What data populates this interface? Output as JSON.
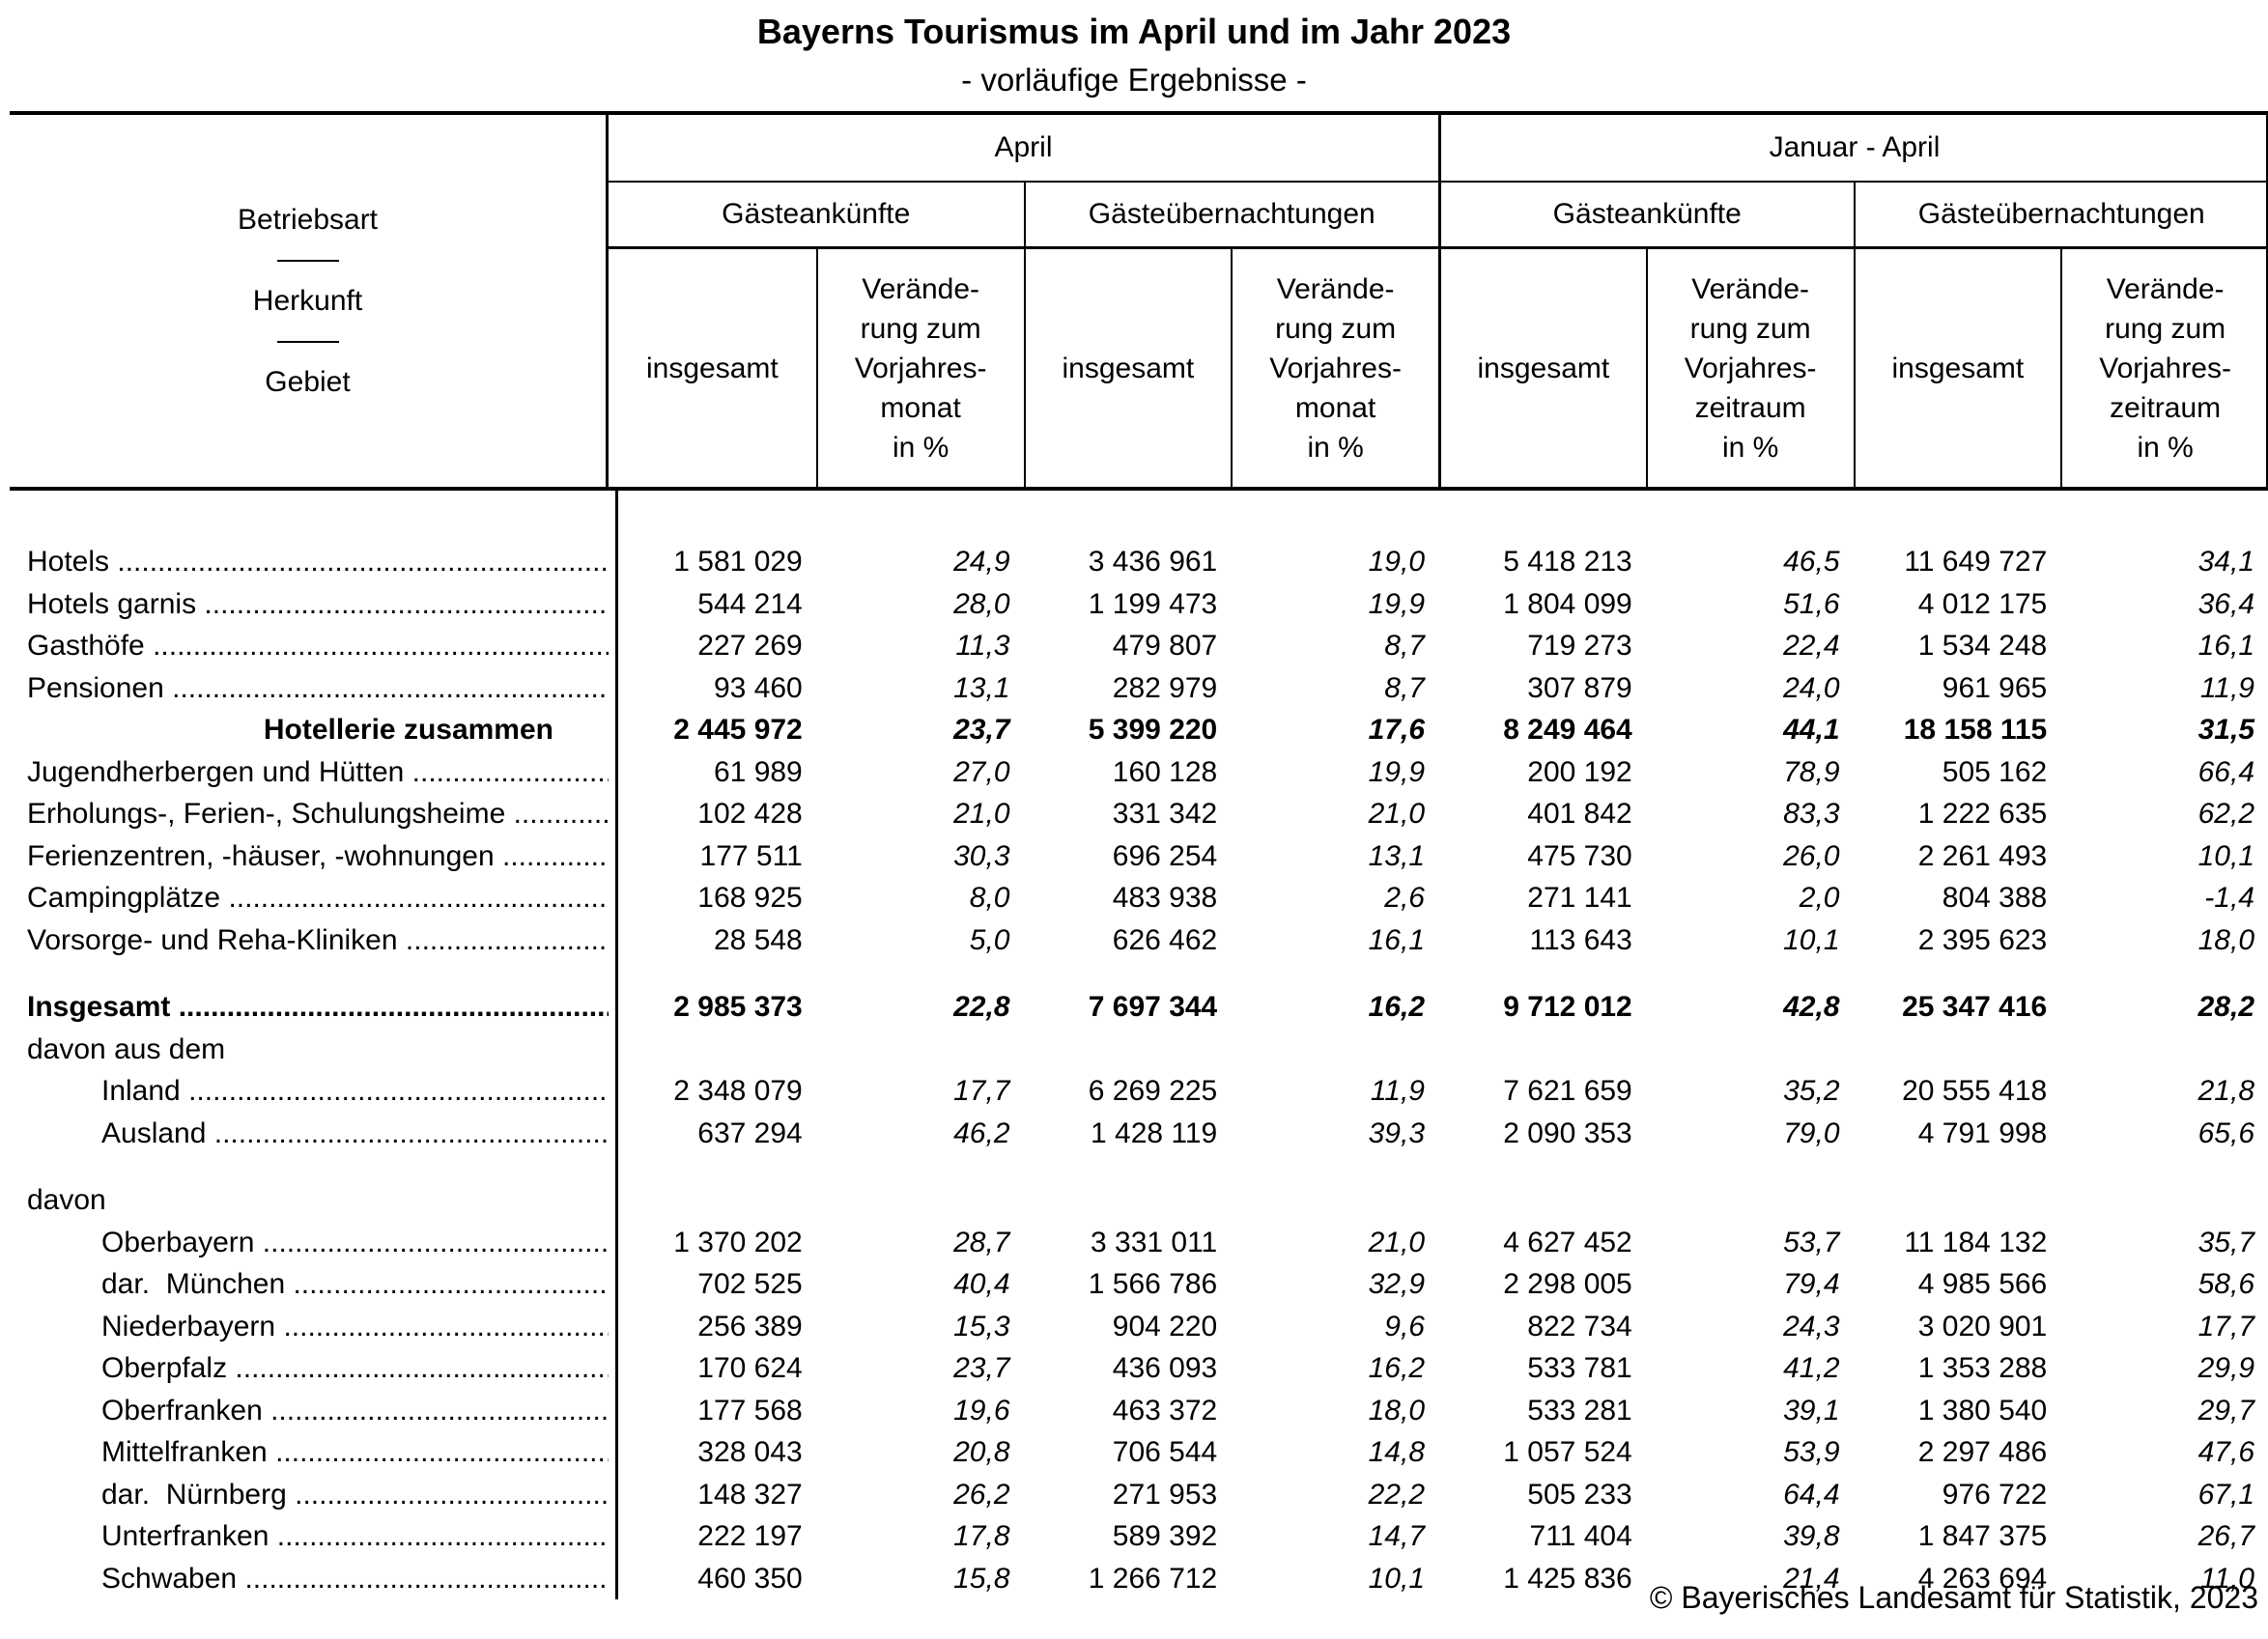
{
  "page": {
    "title": "Bayerns Tourismus im April und im Jahr 2023",
    "subtitle": "- vorläufige Ergebnisse -",
    "footer": "© Bayerisches Landesamt für Statistik, 2023"
  },
  "table": {
    "stub": {
      "line1": "Betriebsart",
      "line2": "Herkunft",
      "line3": "Gebiet"
    },
    "periods": {
      "april": "April",
      "jan_april": "Januar - April"
    },
    "measures": {
      "arrivals": "Gästeankünfte",
      "overnights": "Gästeübernachtungen"
    },
    "subcols": {
      "total": "insgesamt",
      "change_month": "Verände-\nrung zum\nVorjahres-\nmonat\nin %",
      "change_period": "Verände-\nrung zum\nVorjahres-\nzeitraum\nin %"
    },
    "leader": " ..........................................................................................",
    "rows": [
      {
        "label": "Hotels",
        "dots": true,
        "bold": false,
        "indent": 0,
        "values": [
          "1 581 029",
          "24,9",
          "3 436 961",
          "19,0",
          "5 418 213",
          "46,5",
          "11 649 727",
          "34,1"
        ]
      },
      {
        "label": "Hotels garnis",
        "dots": true,
        "bold": false,
        "indent": 0,
        "values": [
          "544 214",
          "28,0",
          "1 199 473",
          "19,9",
          "1 804 099",
          "51,6",
          "4 012 175",
          "36,4"
        ]
      },
      {
        "label": "Gasthöfe",
        "dots": true,
        "bold": false,
        "indent": 0,
        "values": [
          "227 269",
          "11,3",
          "479 807",
          "8,7",
          "719 273",
          "22,4",
          "1 534 248",
          "16,1"
        ]
      },
      {
        "label": "Pensionen",
        "dots": true,
        "bold": false,
        "indent": 0,
        "values": [
          "93 460",
          "13,1",
          "282 979",
          "8,7",
          "307 879",
          "24,0",
          "961 965",
          "11,9"
        ]
      },
      {
        "label": "Hotellerie zusammen",
        "dots": false,
        "bold": true,
        "indent": 0,
        "align": "right",
        "values": [
          "2 445 972",
          "23,7",
          "5 399 220",
          "17,6",
          "8 249 464",
          "44,1",
          "18 158 115",
          "31,5"
        ]
      },
      {
        "label": "Jugendherbergen und Hütten",
        "dots": true,
        "bold": false,
        "indent": 0,
        "values": [
          "61 989",
          "27,0",
          "160 128",
          "19,9",
          "200 192",
          "78,9",
          "505 162",
          "66,4"
        ]
      },
      {
        "label": "Erholungs-, Ferien-, Schulungsheime",
        "dots": true,
        "bold": false,
        "indent": 0,
        "values": [
          "102 428",
          "21,0",
          "331 342",
          "21,0",
          "401 842",
          "83,3",
          "1 222 635",
          "62,2"
        ]
      },
      {
        "label": "Ferienzentren, -häuser, -wohnungen",
        "dots": true,
        "bold": false,
        "indent": 0,
        "values": [
          "177 511",
          "30,3",
          "696 254",
          "13,1",
          "475 730",
          "26,0",
          "2 261 493",
          "10,1"
        ]
      },
      {
        "label": "Campingplätze",
        "dots": true,
        "bold": false,
        "indent": 0,
        "values": [
          "168 925",
          "8,0",
          "483 938",
          "2,6",
          "271 141",
          "2,0",
          "804 388",
          "-1,4"
        ]
      },
      {
        "label": "Vorsorge- und Reha-Kliniken",
        "dots": true,
        "bold": false,
        "indent": 0,
        "values": [
          "28 548",
          "5,0",
          "626 462",
          "16,1",
          "113 643",
          "10,1",
          "2 395 623",
          "18,0"
        ]
      },
      {
        "spacer": true
      },
      {
        "label": "Insgesamt",
        "dots": true,
        "bold": true,
        "indent": 0,
        "values": [
          "2 985 373",
          "22,8",
          "7 697 344",
          "16,2",
          "9 712 012",
          "42,8",
          "25 347 416",
          "28,2"
        ]
      },
      {
        "label": "davon aus dem",
        "dots": false,
        "bold": false,
        "indent": 0,
        "values": []
      },
      {
        "label": "Inland",
        "dots": true,
        "bold": false,
        "indent": 1,
        "values": [
          "2 348 079",
          "17,7",
          "6 269 225",
          "11,9",
          "7 621 659",
          "35,2",
          "20 555 418",
          "21,8"
        ]
      },
      {
        "label": "Ausland",
        "dots": true,
        "bold": false,
        "indent": 1,
        "values": [
          "637 294",
          "46,2",
          "1 428 119",
          "39,3",
          "2 090 353",
          "79,0",
          "4 791 998",
          "65,6"
        ]
      },
      {
        "spacer": true
      },
      {
        "label": "davon",
        "dots": false,
        "bold": false,
        "indent": 0,
        "values": []
      },
      {
        "label": "Oberbayern",
        "dots": true,
        "bold": false,
        "indent": 1,
        "values": [
          "1 370 202",
          "28,7",
          "3 331 011",
          "21,0",
          "4 627 452",
          "53,7",
          "11 184 132",
          "35,7"
        ]
      },
      {
        "label": "dar.  München",
        "dots": true,
        "bold": false,
        "indent": 1,
        "values": [
          "702 525",
          "40,4",
          "1 566 786",
          "32,9",
          "2 298 005",
          "79,4",
          "4 985 566",
          "58,6"
        ]
      },
      {
        "label": "Niederbayern",
        "dots": true,
        "bold": false,
        "indent": 1,
        "values": [
          "256 389",
          "15,3",
          "904 220",
          "9,6",
          "822 734",
          "24,3",
          "3 020 901",
          "17,7"
        ]
      },
      {
        "label": "Oberpfalz",
        "dots": true,
        "bold": false,
        "indent": 1,
        "values": [
          "170 624",
          "23,7",
          "436 093",
          "16,2",
          "533 781",
          "41,2",
          "1 353 288",
          "29,9"
        ]
      },
      {
        "label": "Oberfranken",
        "dots": true,
        "bold": false,
        "indent": 1,
        "values": [
          "177 568",
          "19,6",
          "463 372",
          "18,0",
          "533 281",
          "39,1",
          "1 380 540",
          "29,7"
        ]
      },
      {
        "label": "Mittelfranken",
        "dots": true,
        "bold": false,
        "indent": 1,
        "values": [
          "328 043",
          "20,8",
          "706 544",
          "14,8",
          "1 057 524",
          "53,9",
          "2 297 486",
          "47,6"
        ]
      },
      {
        "label": "dar.  Nürnberg",
        "dots": true,
        "bold": false,
        "indent": 1,
        "values": [
          "148 327",
          "26,2",
          "271 953",
          "22,2",
          "505 233",
          "64,4",
          "976 722",
          "67,1"
        ]
      },
      {
        "label": "Unterfranken",
        "dots": true,
        "bold": false,
        "indent": 1,
        "values": [
          "222 197",
          "17,8",
          "589 392",
          "14,7",
          "711 404",
          "39,8",
          "1 847 375",
          "26,7"
        ]
      },
      {
        "label": "Schwaben",
        "dots": true,
        "bold": false,
        "indent": 1,
        "values": [
          "460 350",
          "15,8",
          "1 266 712",
          "10,1",
          "1 425 836",
          "21,4",
          "4 263 694",
          "11,0"
        ]
      }
    ]
  }
}
